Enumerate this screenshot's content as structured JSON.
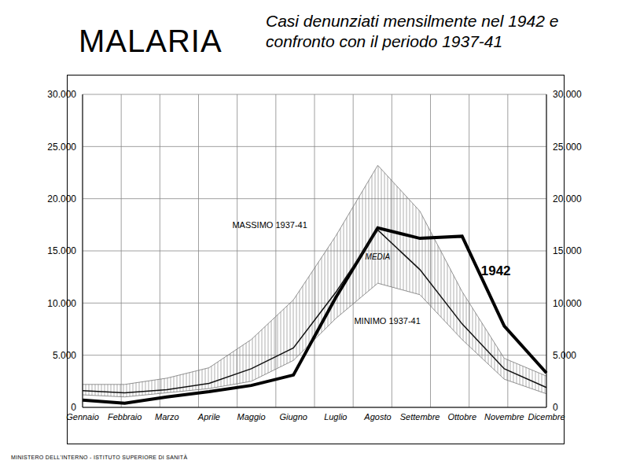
{
  "chart_data": {
    "type": "line",
    "title": "MALARIA",
    "subtitle": "Casi denunziati mensilmente nel 1942 e confronto con il periodo 1937-41",
    "footer": "MINISTERO DELL'INTERNO - ISTITUTO SUPERIORE DI SANITÀ",
    "categories": [
      "Gennaio",
      "Febbraio",
      "Marzo",
      "Aprile",
      "Maggio",
      "Giugno",
      "Luglio",
      "Agosto",
      "Settembre",
      "Ottobre",
      "Novembre",
      "Dicembre"
    ],
    "series": [
      {
        "name": "1942",
        "color": "#000000",
        "line_style": "solid",
        "type": "line",
        "values": [
          700,
          400,
          1000,
          1500,
          2100,
          3100,
          10500,
          17200,
          16200,
          16400,
          7800,
          3300
        ]
      },
      {
        "name": "MEDIA",
        "color": "#111111",
        "line_style": "solid",
        "type": "line",
        "values": [
          1600,
          1400,
          1700,
          2300,
          3700,
          5700,
          11000,
          17000,
          13200,
          8000,
          3700,
          1900
        ]
      },
      {
        "name": "MASSIMO 1937-41",
        "color": "#777777",
        "line_style": "solid",
        "type": "band",
        "values": [
          2200,
          2200,
          2800,
          3800,
          6500,
          10300,
          16400,
          23200,
          18800,
          11100,
          4700,
          3000
        ]
      },
      {
        "name": "MINIMO 1937-41",
        "color": "#777777",
        "line_style": "solid",
        "type": "band",
        "values": [
          1200,
          1000,
          1400,
          1800,
          2500,
          4500,
          8500,
          11900,
          10800,
          6500,
          2700,
          1300
        ]
      }
    ],
    "ylim": [
      0,
      30000
    ],
    "yticks": [
      0,
      {
        "value": 5000,
        "label": "5.000"
      },
      {
        "value": 10000,
        "label": "10.000"
      },
      {
        "value": 15000,
        "label": "15.000"
      },
      {
        "value": 20000,
        "label": "20.000"
      },
      {
        "value": 25000,
        "label": "25.000"
      },
      {
        "value": 30000,
        "label": "30.000"
      }
    ],
    "y2lim": [
      0,
      30000
    ],
    "y2ticks": [
      0,
      {
        "value": 5000,
        "label": "5.000"
      },
      {
        "value": 10000,
        "label": "10.000"
      },
      {
        "value": 15000,
        "label": "15.000"
      },
      {
        "value": 20000,
        "label": "20.000"
      },
      {
        "value": 25000,
        "label": "25.000"
      },
      {
        "value": 30000,
        "label": "30.000"
      }
    ],
    "grid": true
  }
}
